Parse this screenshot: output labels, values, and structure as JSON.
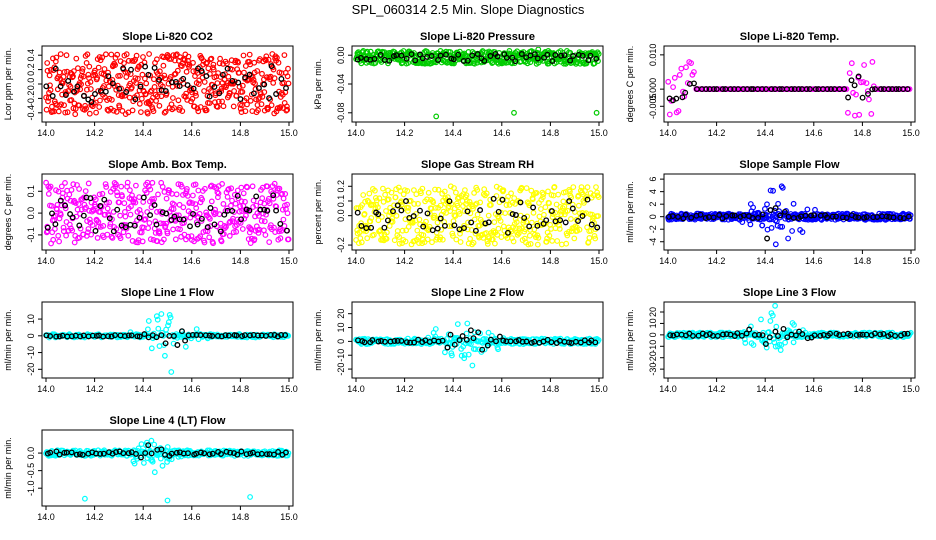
{
  "figure_title": "SPL_060314  2.5 Min. Slope Diagnostics",
  "chart_data": [
    {
      "type": "scatter",
      "title": "Slope Li-820 CO2",
      "ylabel": "Lcor ppm per min.",
      "color": "#ff0000",
      "xlim": [
        14.0,
        15.0
      ],
      "ylim": [
        -0.5,
        0.5
      ],
      "xticks": [
        "14.0",
        "14.2",
        "14.4",
        "14.6",
        "14.8",
        "15.0"
      ],
      "yticks": [
        {
          "v": -0.4,
          "label": "-0.4"
        },
        {
          "v": -0.2,
          "label": "-0.2"
        },
        {
          "v": 0.0,
          "label": "0.0"
        },
        {
          "v": 0.2,
          "label": "0.2"
        },
        {
          "v": 0.4,
          "label": "0.4"
        }
      ],
      "pattern": "uniform",
      "amp": 0.42,
      "density": 500,
      "black_density": 55,
      "seed": 11
    },
    {
      "type": "scatter",
      "title": "Slope Li-820 Pressure",
      "ylabel": "kPa per min.",
      "color": "#00cc00",
      "xlim": [
        14.0,
        15.0
      ],
      "ylim": [
        -0.09,
        0.01
      ],
      "xticks": [
        "14.0",
        "14.2",
        "14.4",
        "14.6",
        "14.8",
        "15.0"
      ],
      "yticks": [
        {
          "v": -0.08,
          "label": "-0.08"
        },
        {
          "v": -0.04,
          "label": "-0.04"
        },
        {
          "v": 0.0,
          "label": "0.00"
        }
      ],
      "pattern": "band",
      "center": -0.003,
      "amp": 0.009,
      "density": 420,
      "black_density": 55,
      "seed": 23,
      "outliers": [
        {
          "x": 14.33,
          "y": -0.085
        },
        {
          "x": 14.65,
          "y": -0.08
        },
        {
          "x": 14.99,
          "y": -0.08
        },
        {
          "x": 14.75,
          "y": 0.008
        },
        {
          "x": 14.03,
          "y": 0.006
        }
      ]
    },
    {
      "type": "scatter",
      "title": "Slope Li-820 Temp.",
      "ylabel": "degrees C per min.",
      "color": "#ff00ff",
      "xlim": [
        14.0,
        15.0
      ],
      "ylim": [
        -0.009,
        0.012
      ],
      "xticks": [
        "14.0",
        "14.2",
        "14.4",
        "14.6",
        "14.8",
        "15.0"
      ],
      "yticks": [
        {
          "v": -0.005,
          "label": "-0.005"
        },
        {
          "v": 0.0,
          "label": "0.000"
        },
        {
          "v": 0.01,
          "label": "0.010"
        }
      ],
      "pattern": "flat_bursts",
      "bursts": [
        [
          14.0,
          14.11
        ],
        [
          14.74,
          14.85
        ]
      ],
      "amp": 0.008,
      "density": 150,
      "black_density": 60,
      "seed": 37
    },
    {
      "type": "scatter",
      "title": "Slope Amb. Box Temp.",
      "ylabel": "degrees C per min.",
      "color": "#ff00ff",
      "xlim": [
        14.0,
        15.0
      ],
      "ylim": [
        -0.16,
        0.17
      ],
      "xticks": [
        "14.0",
        "14.2",
        "14.4",
        "14.6",
        "14.8",
        "15.0"
      ],
      "yticks": [
        {
          "v": -0.1,
          "label": "-0.1"
        },
        {
          "v": 0.0,
          "label": "0.0"
        },
        {
          "v": 0.1,
          "label": "0.1"
        }
      ],
      "pattern": "uniform",
      "amp": 0.14,
      "density": 450,
      "black_density": 55,
      "seed": 41
    },
    {
      "type": "scatter",
      "title": "Slope Gas Stream RH",
      "ylabel": "percent per min.",
      "color": "#ffff00",
      "xlim": [
        14.0,
        15.0
      ],
      "ylim": [
        -0.22,
        0.27
      ],
      "xticks": [
        "14.0",
        "14.2",
        "14.4",
        "14.6",
        "14.8",
        "15.0"
      ],
      "yticks": [
        {
          "v": -0.2,
          "label": "-0.2"
        },
        {
          "v": 0.0,
          "label": "0.0"
        },
        {
          "v": 0.1,
          "label": "0.1"
        },
        {
          "v": 0.2,
          "label": "0.2"
        }
      ],
      "pattern": "uniform",
      "amp": 0.2,
      "density": 480,
      "black_density": 55,
      "seed": 53
    },
    {
      "type": "scatter",
      "title": "Slope Sample Flow",
      "ylabel": "ml/min per min.",
      "color": "#0000ff",
      "xlim": [
        14.0,
        15.0
      ],
      "ylim": [
        -5,
        6.5
      ],
      "xticks": [
        "14.0",
        "14.2",
        "14.4",
        "14.6",
        "14.8",
        "15.0"
      ],
      "yticks": [
        {
          "v": -4,
          "label": "-4"
        },
        {
          "v": -2,
          "label": "-2"
        },
        {
          "v": 0,
          "label": "0"
        },
        {
          "v": 2,
          "label": "2"
        },
        {
          "v": 4,
          "label": "4"
        },
        {
          "v": 6,
          "label": "6"
        }
      ],
      "pattern": "spike",
      "base_amp": 0.5,
      "spike_center": 14.45,
      "spike_width": 0.12,
      "amp": 4.8,
      "density": 420,
      "black_density": 55,
      "seed": 67
    },
    {
      "type": "scatter",
      "title": "Slope Line 1 Flow",
      "ylabel": "ml/min per min.",
      "color": "#00ffff",
      "xlim": [
        14.0,
        15.0
      ],
      "ylim": [
        -24,
        19
      ],
      "xticks": [
        "14.0",
        "14.2",
        "14.4",
        "14.6",
        "14.8",
        "15.0"
      ],
      "yticks": [
        {
          "v": -20,
          "label": "-20"
        },
        {
          "v": -10,
          "label": "-10"
        },
        {
          "v": 0,
          "label": "0"
        },
        {
          "v": 10,
          "label": "10"
        }
      ],
      "pattern": "spike",
      "base_amp": 1.0,
      "spike_center": 14.5,
      "spike_width": 0.12,
      "amp": 18,
      "density": 260,
      "black_density": 60,
      "seed": 71
    },
    {
      "type": "scatter",
      "title": "Slope Line 2 Flow",
      "ylabel": "ml/min per min.",
      "color": "#00ffff",
      "xlim": [
        14.0,
        15.0
      ],
      "ylim": [
        -25,
        27
      ],
      "xticks": [
        "14.0",
        "14.2",
        "14.4",
        "14.6",
        "14.8",
        "15.0"
      ],
      "yticks": [
        {
          "v": -20,
          "label": "-20"
        },
        {
          "v": -10,
          "label": "-10"
        },
        {
          "v": 0,
          "label": "0"
        },
        {
          "v": 10,
          "label": "10"
        },
        {
          "v": 20,
          "label": "20"
        }
      ],
      "pattern": "spike",
      "base_amp": 2.0,
      "spike_center": 14.45,
      "spike_width": 0.13,
      "amp": 20,
      "density": 320,
      "black_density": 60,
      "seed": 83
    },
    {
      "type": "scatter",
      "title": "Slope Line 3 Flow",
      "ylabel": "ml/min per min.",
      "color": "#00ffff",
      "xlim": [
        14.0,
        15.0
      ],
      "ylim": [
        -36,
        27
      ],
      "xticks": [
        "14.0",
        "14.2",
        "14.4",
        "14.6",
        "14.8",
        "15.0"
      ],
      "yticks": [
        {
          "v": -30,
          "label": "-30"
        },
        {
          "v": -20,
          "label": "-20"
        },
        {
          "v": -10,
          "label": "-10"
        },
        {
          "v": 0,
          "label": "0"
        },
        {
          "v": 10,
          "label": "10"
        },
        {
          "v": 20,
          "label": "20"
        }
      ],
      "pattern": "spike",
      "base_amp": 2.0,
      "spike_center": 14.42,
      "spike_width": 0.14,
      "amp": 25,
      "density": 330,
      "black_density": 60,
      "seed": 97
    },
    {
      "type": "scatter",
      "title": "Slope Line 4 (LT) Flow",
      "ylabel": "ml/min per min.",
      "color": "#00ffff",
      "xlim": [
        14.0,
        15.0
      ],
      "ylim": [
        -1.45,
        0.6
      ],
      "xticks": [
        "14.0",
        "14.2",
        "14.4",
        "14.6",
        "14.8",
        "15.0"
      ],
      "yticks": [
        {
          "v": -1.0,
          "label": "-1.0"
        },
        {
          "v": -0.5,
          "label": "-0.5"
        },
        {
          "v": 0.0,
          "label": "0.0"
        }
      ],
      "pattern": "spike",
      "base_amp": 0.08,
      "spike_center": 14.45,
      "spike_width": 0.12,
      "amp": 0.45,
      "density": 360,
      "black_density": 60,
      "seed": 101,
      "outliers": [
        {
          "x": 14.16,
          "y": -1.3
        },
        {
          "x": 14.5,
          "y": -1.35
        },
        {
          "x": 14.84,
          "y": -1.25
        }
      ]
    }
  ]
}
